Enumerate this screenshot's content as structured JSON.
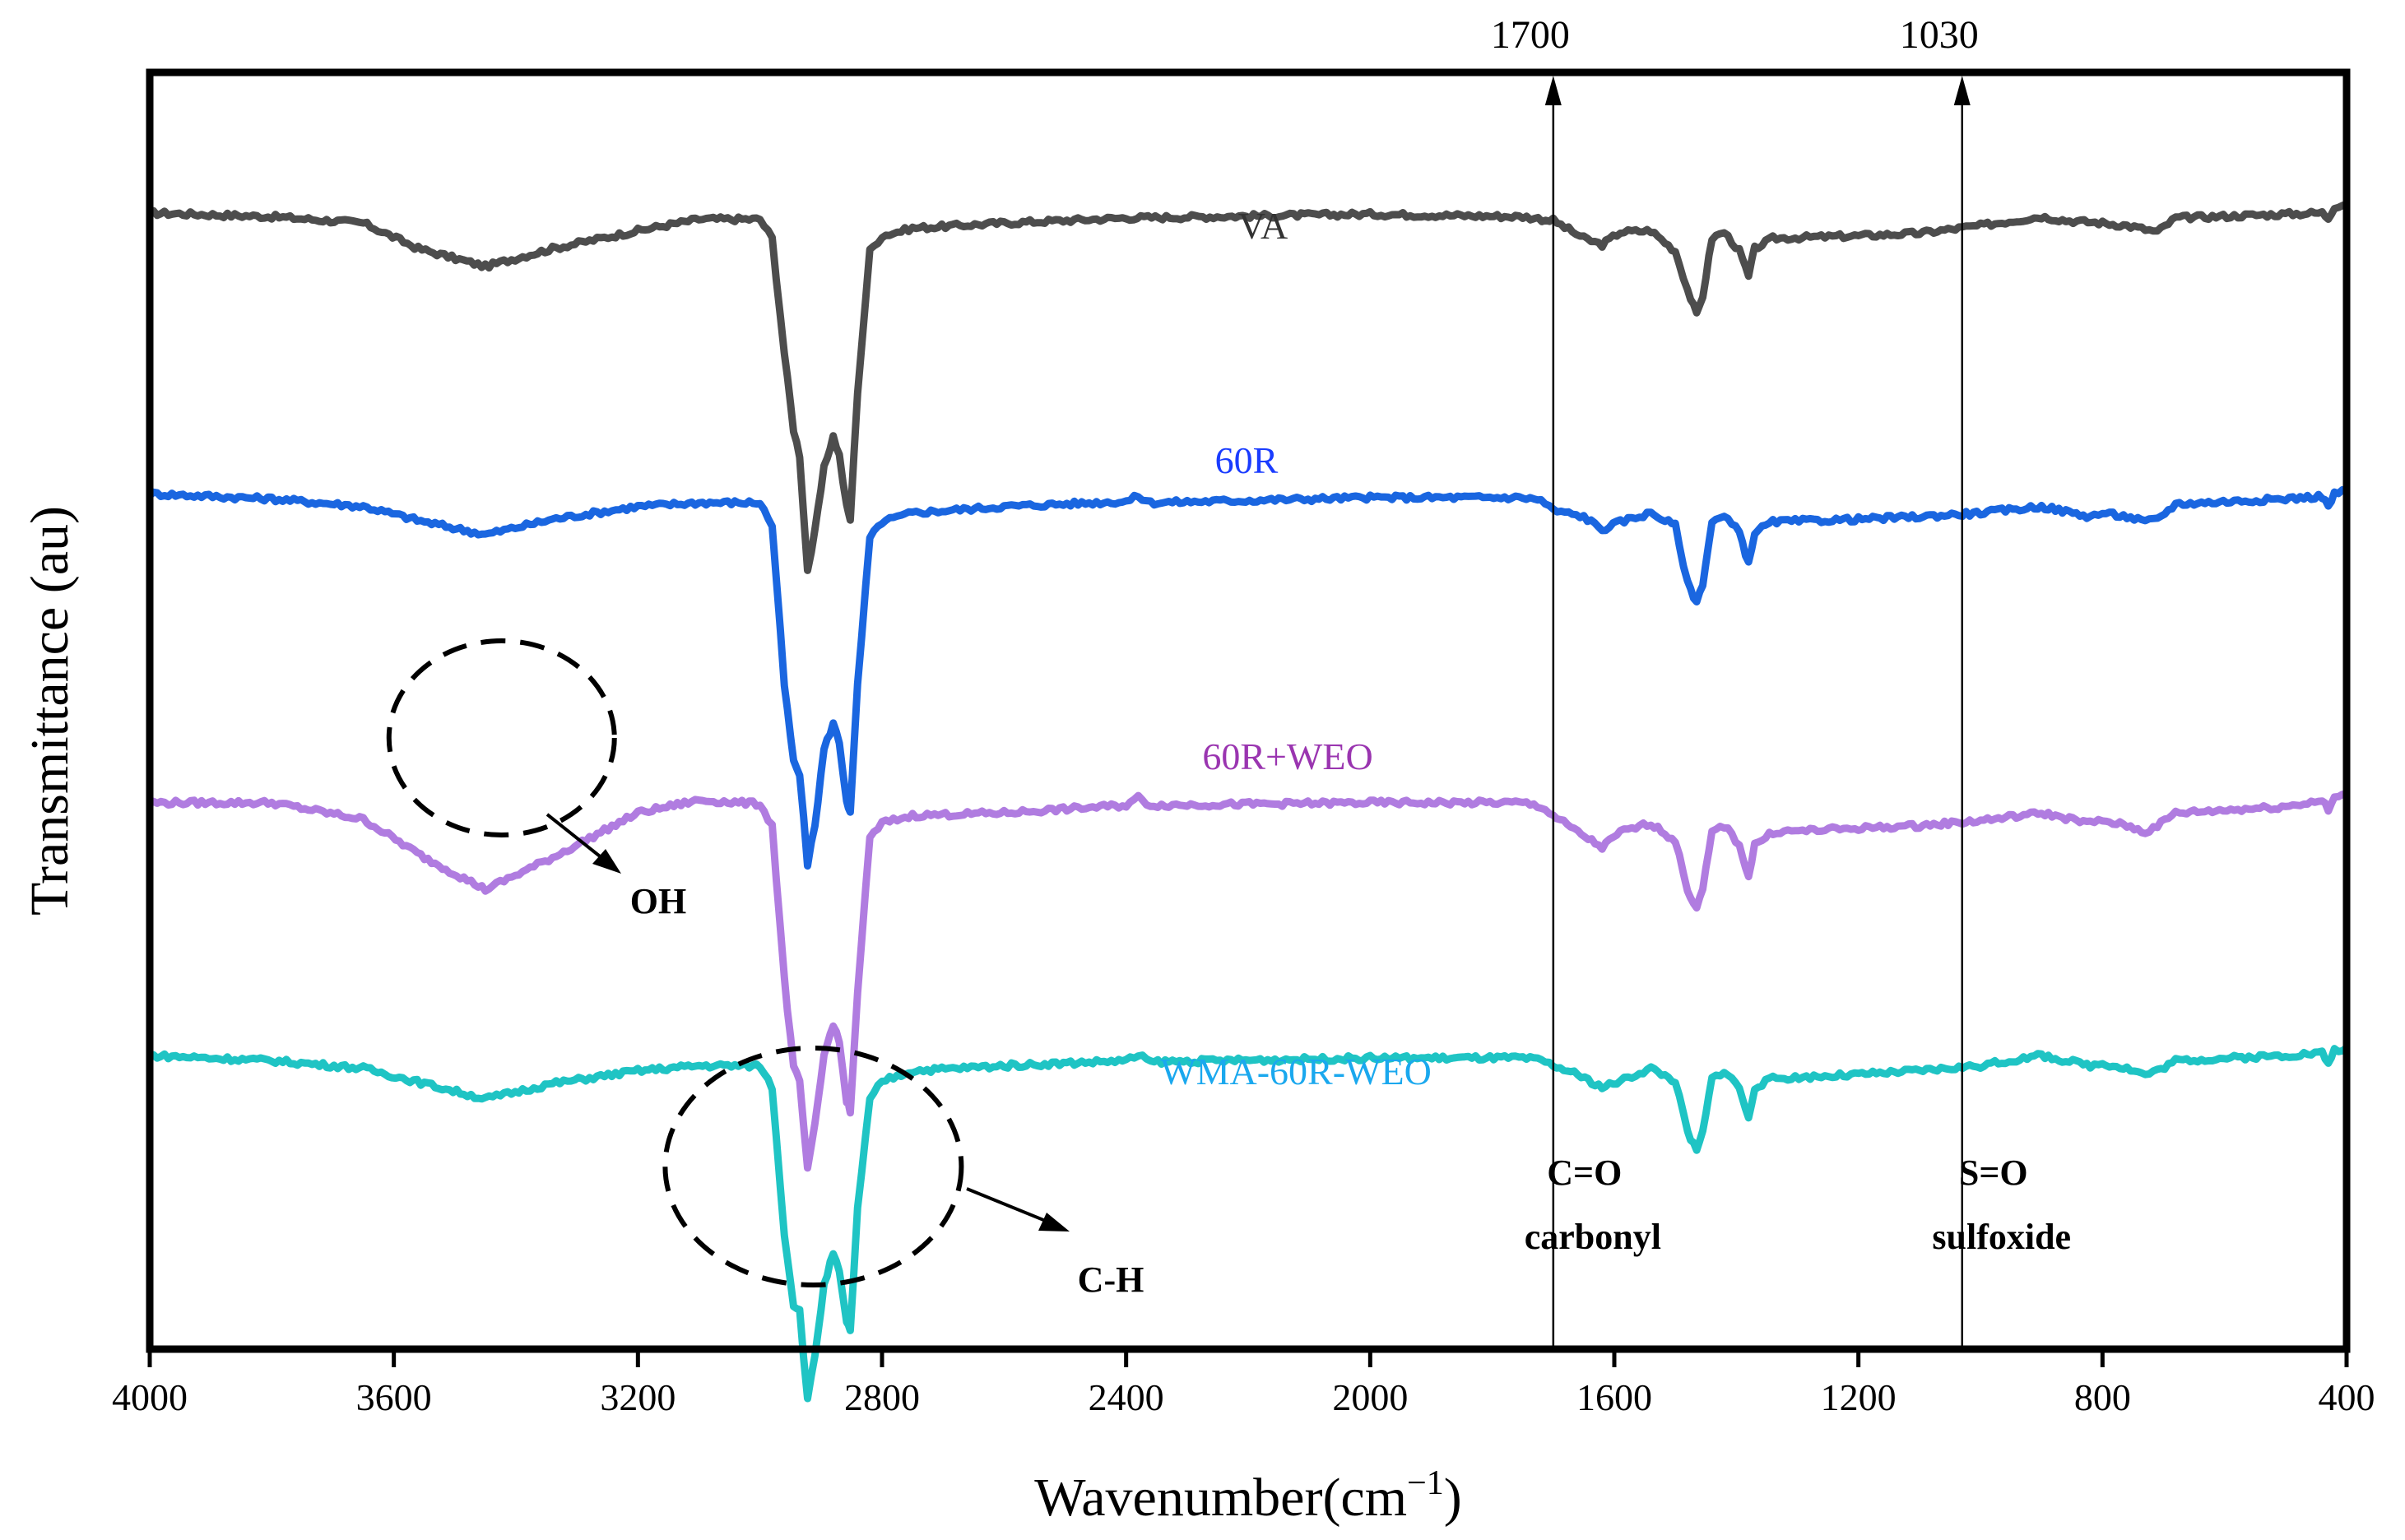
{
  "chart_data": {
    "type": "line",
    "title": "",
    "xlabel": "Wavenumber(cm",
    "xlabel_sup": "−1",
    "xlabel_close": ")",
    "ylabel": "Transmittance (au)",
    "xlim": [
      4000,
      400
    ],
    "x_reversed": true,
    "y_ticks_shown": false,
    "grid": false,
    "x_ticks": [
      4000,
      3600,
      3200,
      2800,
      2400,
      2000,
      1600,
      1200,
      800,
      400
    ],
    "series": [
      {
        "name": "VA",
        "color": "#4d4d4d",
        "label_color": "#333333",
        "baseline": 0.89,
        "points": [
          [
            4000,
            0.89
          ],
          [
            3800,
            0.887
          ],
          [
            3650,
            0.882
          ],
          [
            3560,
            0.862
          ],
          [
            3450,
            0.848
          ],
          [
            3340,
            0.862
          ],
          [
            3200,
            0.876
          ],
          [
            3100,
            0.885
          ],
          [
            3000,
            0.885
          ],
          [
            2980,
            0.87
          ],
          [
            2960,
            0.78
          ],
          [
            2945,
            0.72
          ],
          [
            2935,
            0.7
          ],
          [
            2922,
            0.61
          ],
          [
            2910,
            0.64
          ],
          [
            2895,
            0.69
          ],
          [
            2880,
            0.715
          ],
          [
            2870,
            0.7
          ],
          [
            2858,
            0.66
          ],
          [
            2852,
            0.65
          ],
          [
            2840,
            0.75
          ],
          [
            2820,
            0.86
          ],
          [
            2800,
            0.872
          ],
          [
            2750,
            0.878
          ],
          [
            2600,
            0.882
          ],
          [
            2400,
            0.886
          ],
          [
            2000,
            0.889
          ],
          [
            1750,
            0.887
          ],
          [
            1700,
            0.884
          ],
          [
            1650,
            0.87
          ],
          [
            1620,
            0.865
          ],
          [
            1590,
            0.875
          ],
          [
            1540,
            0.876
          ],
          [
            1500,
            0.86
          ],
          [
            1480,
            0.83
          ],
          [
            1465,
            0.81
          ],
          [
            1455,
            0.825
          ],
          [
            1440,
            0.87
          ],
          [
            1420,
            0.875
          ],
          [
            1395,
            0.86
          ],
          [
            1380,
            0.84
          ],
          [
            1370,
            0.862
          ],
          [
            1340,
            0.87
          ],
          [
            1200,
            0.872
          ],
          [
            1100,
            0.874
          ],
          [
            1000,
            0.88
          ],
          [
            900,
            0.887
          ],
          [
            860,
            0.884
          ],
          [
            800,
            0.882
          ],
          [
            760,
            0.88
          ],
          [
            730,
            0.877
          ],
          [
            710,
            0.875
          ],
          [
            680,
            0.886
          ],
          [
            500,
            0.889
          ],
          [
            440,
            0.89
          ],
          [
            430,
            0.886
          ],
          [
            420,
            0.895
          ],
          [
            400,
            0.897
          ]
        ]
      },
      {
        "name": "60R",
        "color": "#1a66e0",
        "label_color": "#1a3cff",
        "baseline": 0.67,
        "points": [
          [
            4000,
            0.67
          ],
          [
            3800,
            0.666
          ],
          [
            3650,
            0.66
          ],
          [
            3550,
            0.648
          ],
          [
            3450,
            0.638
          ],
          [
            3340,
            0.65
          ],
          [
            3200,
            0.66
          ],
          [
            3100,
            0.663
          ],
          [
            3000,
            0.663
          ],
          [
            2980,
            0.645
          ],
          [
            2960,
            0.52
          ],
          [
            2945,
            0.46
          ],
          [
            2935,
            0.45
          ],
          [
            2922,
            0.38
          ],
          [
            2910,
            0.41
          ],
          [
            2895,
            0.47
          ],
          [
            2880,
            0.49
          ],
          [
            2870,
            0.475
          ],
          [
            2858,
            0.43
          ],
          [
            2852,
            0.42
          ],
          [
            2840,
            0.52
          ],
          [
            2820,
            0.635
          ],
          [
            2800,
            0.648
          ],
          [
            2750,
            0.655
          ],
          [
            2600,
            0.66
          ],
          [
            2400,
            0.664
          ],
          [
            2380,
            0.668
          ],
          [
            2360,
            0.663
          ],
          [
            2000,
            0.667
          ],
          [
            1750,
            0.667
          ],
          [
            1720,
            0.665
          ],
          [
            1700,
            0.657
          ],
          [
            1650,
            0.652
          ],
          [
            1620,
            0.642
          ],
          [
            1590,
            0.648
          ],
          [
            1540,
            0.655
          ],
          [
            1500,
            0.645
          ],
          [
            1480,
            0.6
          ],
          [
            1465,
            0.585
          ],
          [
            1455,
            0.6
          ],
          [
            1440,
            0.648
          ],
          [
            1420,
            0.652
          ],
          [
            1395,
            0.64
          ],
          [
            1380,
            0.615
          ],
          [
            1370,
            0.64
          ],
          [
            1340,
            0.648
          ],
          [
            1200,
            0.65
          ],
          [
            1100,
            0.652
          ],
          [
            1000,
            0.655
          ],
          [
            900,
            0.66
          ],
          [
            860,
            0.656
          ],
          [
            820,
            0.652
          ],
          [
            800,
            0.655
          ],
          [
            760,
            0.652
          ],
          [
            730,
            0.648
          ],
          [
            710,
            0.65
          ],
          [
            680,
            0.662
          ],
          [
            500,
            0.666
          ],
          [
            440,
            0.668
          ],
          [
            430,
            0.66
          ],
          [
            420,
            0.67
          ],
          [
            400,
            0.672
          ]
        ]
      },
      {
        "name": "60R+WEO",
        "color": "#b07ce0",
        "label_color": "#9a35b0",
        "baseline": 0.43,
        "points": [
          [
            4000,
            0.428
          ],
          [
            3800,
            0.428
          ],
          [
            3650,
            0.415
          ],
          [
            3550,
            0.385
          ],
          [
            3450,
            0.36
          ],
          [
            3340,
            0.385
          ],
          [
            3200,
            0.42
          ],
          [
            3100,
            0.43
          ],
          [
            3000,
            0.427
          ],
          [
            2980,
            0.41
          ],
          [
            2960,
            0.29
          ],
          [
            2945,
            0.22
          ],
          [
            2935,
            0.21
          ],
          [
            2922,
            0.14
          ],
          [
            2910,
            0.175
          ],
          [
            2895,
            0.23
          ],
          [
            2880,
            0.255
          ],
          [
            2870,
            0.24
          ],
          [
            2858,
            0.195
          ],
          [
            2852,
            0.185
          ],
          [
            2840,
            0.28
          ],
          [
            2820,
            0.4
          ],
          [
            2800,
            0.412
          ],
          [
            2750,
            0.418
          ],
          [
            2600,
            0.42
          ],
          [
            2400,
            0.426
          ],
          [
            2380,
            0.432
          ],
          [
            2360,
            0.426
          ],
          [
            2000,
            0.428
          ],
          [
            1750,
            0.428
          ],
          [
            1720,
            0.425
          ],
          [
            1700,
            0.418
          ],
          [
            1660,
            0.405
          ],
          [
            1620,
            0.393
          ],
          [
            1590,
            0.405
          ],
          [
            1540,
            0.412
          ],
          [
            1500,
            0.398
          ],
          [
            1480,
            0.36
          ],
          [
            1465,
            0.345
          ],
          [
            1455,
            0.36
          ],
          [
            1440,
            0.405
          ],
          [
            1420,
            0.41
          ],
          [
            1395,
            0.395
          ],
          [
            1380,
            0.37
          ],
          [
            1370,
            0.395
          ],
          [
            1340,
            0.405
          ],
          [
            1200,
            0.408
          ],
          [
            1100,
            0.41
          ],
          [
            1000,
            0.414
          ],
          [
            900,
            0.42
          ],
          [
            860,
            0.416
          ],
          [
            820,
            0.412
          ],
          [
            800,
            0.414
          ],
          [
            760,
            0.41
          ],
          [
            730,
            0.405
          ],
          [
            710,
            0.41
          ],
          [
            680,
            0.42
          ],
          [
            500,
            0.425
          ],
          [
            440,
            0.43
          ],
          [
            430,
            0.422
          ],
          [
            420,
            0.432
          ],
          [
            400,
            0.434
          ]
        ]
      },
      {
        "name": "WMA-60R-WEO",
        "color": "#1fc4c4",
        "label_color": "#1aa8ee",
        "baseline": 0.23,
        "points": [
          [
            4000,
            0.23
          ],
          [
            3800,
            0.226
          ],
          [
            3650,
            0.22
          ],
          [
            3550,
            0.208
          ],
          [
            3450,
            0.196
          ],
          [
            3340,
            0.208
          ],
          [
            3200,
            0.218
          ],
          [
            3100,
            0.222
          ],
          [
            3000,
            0.222
          ],
          [
            2980,
            0.205
          ],
          [
            2960,
            0.09
          ],
          [
            2945,
            0.035
          ],
          [
            2935,
            0.03
          ],
          [
            2922,
            -0.04
          ],
          [
            2910,
            -0.005
          ],
          [
            2895,
            0.05
          ],
          [
            2880,
            0.075
          ],
          [
            2870,
            0.06
          ],
          [
            2858,
            0.02
          ],
          [
            2852,
            0.015
          ],
          [
            2840,
            0.11
          ],
          [
            2820,
            0.195
          ],
          [
            2800,
            0.21
          ],
          [
            2750,
            0.218
          ],
          [
            2600,
            0.222
          ],
          [
            2400,
            0.226
          ],
          [
            2380,
            0.23
          ],
          [
            2360,
            0.225
          ],
          [
            2000,
            0.228
          ],
          [
            1750,
            0.228
          ],
          [
            1720,
            0.226
          ],
          [
            1700,
            0.222
          ],
          [
            1660,
            0.215
          ],
          [
            1620,
            0.205
          ],
          [
            1590,
            0.21
          ],
          [
            1540,
            0.22
          ],
          [
            1500,
            0.21
          ],
          [
            1480,
            0.17
          ],
          [
            1465,
            0.155
          ],
          [
            1455,
            0.17
          ],
          [
            1440,
            0.212
          ],
          [
            1420,
            0.218
          ],
          [
            1395,
            0.205
          ],
          [
            1380,
            0.18
          ],
          [
            1370,
            0.205
          ],
          [
            1340,
            0.212
          ],
          [
            1200,
            0.215
          ],
          [
            1100,
            0.218
          ],
          [
            1000,
            0.222
          ],
          [
            900,
            0.23
          ],
          [
            860,
            0.226
          ],
          [
            820,
            0.222
          ],
          [
            800,
            0.224
          ],
          [
            760,
            0.22
          ],
          [
            730,
            0.215
          ],
          [
            710,
            0.218
          ],
          [
            680,
            0.226
          ],
          [
            500,
            0.23
          ],
          [
            440,
            0.232
          ],
          [
            430,
            0.224
          ],
          [
            420,
            0.234
          ],
          [
            400,
            0.236
          ]
        ]
      }
    ],
    "markers": [
      {
        "x": 1700,
        "label": "1700",
        "annotation_top": "C=O",
        "annotation_bottom": "carbonyl"
      },
      {
        "x": 1030,
        "label": "1030",
        "annotation_top": "S=O",
        "annotation_bottom": "sulfoxide"
      }
    ],
    "callouts": [
      {
        "label": "OH",
        "series": "60R+WEO",
        "center_x": 3430
      },
      {
        "label": "C-H",
        "series": "WMA-60R-WEO",
        "center_x": 2910
      }
    ]
  }
}
